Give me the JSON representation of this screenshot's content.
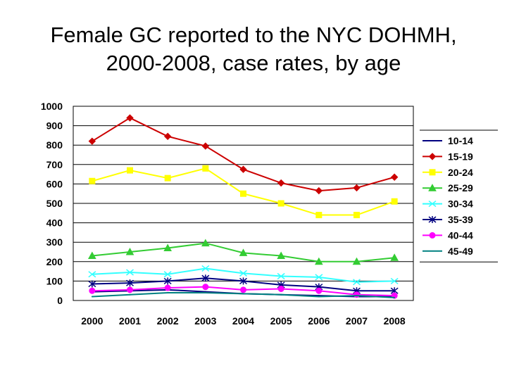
{
  "slide": {
    "title_line1": "Female GC reported to the NYC DOHMH,",
    "title_line2": "2000-2008, case rates, by age"
  },
  "chart_data": {
    "type": "line",
    "title": "Female GC reported to the NYC DOHMH, 2000-2008, case rates, by age",
    "xlabel": "",
    "ylabel": "",
    "x": [
      "2000",
      "2001",
      "2002",
      "2003",
      "2004",
      "2005",
      "2006",
      "2007",
      "2008"
    ],
    "ylim": [
      0,
      1000
    ],
    "yticks": [
      0,
      100,
      200,
      300,
      400,
      500,
      600,
      700,
      800,
      900,
      1000
    ],
    "grid": "horizontal",
    "legend": "right",
    "series": [
      {
        "name": "10-14",
        "color": "#000080",
        "marker": "none",
        "values": [
          45,
          50,
          55,
          45,
          35,
          30,
          25,
          20,
          20
        ]
      },
      {
        "name": "15-19",
        "color": "#cc0000",
        "marker": "diamond",
        "values": [
          820,
          940,
          845,
          795,
          675,
          605,
          565,
          580,
          635
        ]
      },
      {
        "name": "20-24",
        "color": "#ffff00",
        "marker": "square",
        "values": [
          615,
          670,
          630,
          680,
          550,
          500,
          440,
          440,
          510
        ]
      },
      {
        "name": "25-29",
        "color": "#33cc33",
        "marker": "triangle",
        "values": [
          230,
          250,
          270,
          295,
          245,
          230,
          200,
          200,
          220
        ]
      },
      {
        "name": "30-34",
        "color": "#33ffff",
        "marker": "x",
        "values": [
          135,
          145,
          135,
          165,
          140,
          125,
          120,
          95,
          100
        ]
      },
      {
        "name": "35-39",
        "color": "#000080",
        "marker": "star",
        "values": [
          85,
          90,
          100,
          115,
          100,
          80,
          70,
          50,
          50
        ]
      },
      {
        "name": "40-44",
        "color": "#ff00ff",
        "marker": "circle",
        "values": [
          50,
          55,
          65,
          70,
          55,
          60,
          50,
          30,
          25
        ]
      },
      {
        "name": "45-49",
        "color": "#008080",
        "marker": "none",
        "values": [
          20,
          30,
          40,
          40,
          35,
          30,
          20,
          25,
          15
        ]
      }
    ]
  }
}
